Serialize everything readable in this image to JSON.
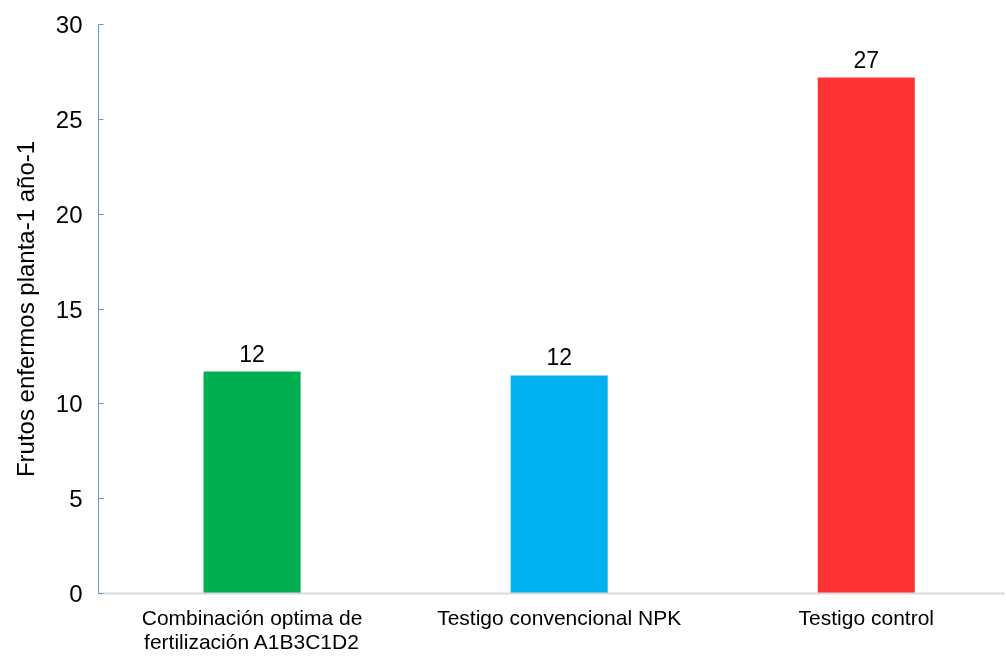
{
  "chart_data": {
    "type": "bar",
    "ylabel": "Frutos enfermos planta-1 año-1",
    "categories": [
      "Combinación optima de fertilización A1B3C1D2",
      "Testigo convencional NPK",
      "Testigo control"
    ],
    "values": [
      11.7,
      11.5,
      27.2
    ],
    "colors": [
      "#00b050",
      "#00b0f0",
      "#ff3333"
    ],
    "value_labels": [
      "12",
      "12",
      "27"
    ],
    "ylim": [
      0,
      30
    ],
    "yticks": [
      0,
      5,
      10,
      15,
      20,
      25,
      30
    ],
    "grid": false
  }
}
